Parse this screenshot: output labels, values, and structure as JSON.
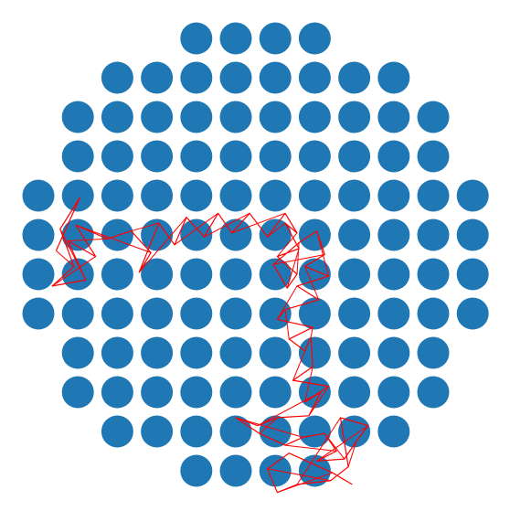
{
  "colors": {
    "background": "#ffffff",
    "dot": "#1f77b4",
    "path": "#ff0000"
  },
  "grid": {
    "columns": 12,
    "rows": 12,
    "row_counts": [
      4,
      8,
      10,
      10,
      12,
      12,
      12,
      12,
      10,
      10,
      8,
      4
    ]
  },
  "path_data": {
    "description_visible": false,
    "points": [
      [
        0.45,
        5.4
      ],
      [
        1.05,
        4.05
      ],
      [
        0.55,
        4.85
      ],
      [
        0.9,
        5.8
      ],
      [
        0.35,
        6.3
      ],
      [
        1.2,
        6.15
      ],
      [
        0.75,
        5.15
      ],
      [
        1.45,
        5.55
      ],
      [
        0.95,
        4.75
      ],
      [
        1.75,
        5.1
      ],
      [
        2.35,
        4.9
      ],
      [
        2.85,
        5.45
      ],
      [
        2.55,
        5.95
      ],
      [
        3.05,
        4.7
      ],
      [
        3.45,
        5.25
      ],
      [
        3.75,
        4.55
      ],
      [
        4.2,
        5.05
      ],
      [
        4.55,
        4.45
      ],
      [
        4.9,
        4.95
      ],
      [
        5.35,
        4.45
      ],
      [
        5.8,
        5.05
      ],
      [
        6.25,
        4.45
      ],
      [
        6.55,
        4.95
      ],
      [
        6.25,
        4.7
      ],
      [
        6.6,
        5.35
      ],
      [
        6.05,
        5.55
      ],
      [
        6.55,
        6.0
      ],
      [
        6.3,
        6.35
      ],
      [
        5.95,
        5.75
      ],
      [
        6.6,
        5.2
      ],
      [
        7.05,
        4.9
      ],
      [
        7.25,
        5.5
      ],
      [
        6.75,
        5.8
      ],
      [
        7.35,
        6.05
      ],
      [
        6.55,
        6.3
      ],
      [
        7.1,
        6.65
      ],
      [
        6.25,
        6.9
      ],
      [
        6.05,
        7.15
      ],
      [
        6.95,
        7.35
      ],
      [
        6.35,
        7.65
      ],
      [
        6.75,
        7.95
      ],
      [
        6.9,
        7.6
      ],
      [
        6.95,
        8.35
      ],
      [
        6.45,
        8.7
      ],
      [
        7.35,
        8.85
      ],
      [
        6.75,
        9.25
      ],
      [
        7.15,
        9.0
      ],
      [
        6.85,
        9.6
      ],
      [
        6.05,
        9.65
      ],
      [
        5.55,
        9.85
      ],
      [
        5.0,
        9.65
      ],
      [
        5.6,
        10.05
      ],
      [
        6.25,
        10.35
      ],
      [
        6.7,
        10.15
      ],
      [
        7.25,
        10.05
      ],
      [
        7.55,
        10.5
      ],
      [
        7.05,
        10.75
      ],
      [
        7.75,
        10.7
      ],
      [
        8.05,
        10.25
      ],
      [
        8.35,
        9.85
      ],
      [
        7.65,
        9.65
      ],
      [
        7.85,
        10.9
      ],
      [
        7.4,
        11.25
      ],
      [
        6.55,
        11.35
      ],
      [
        6.05,
        11.55
      ],
      [
        5.8,
        10.95
      ],
      [
        6.35,
        10.55
      ],
      [
        7.45,
        11.05
      ],
      [
        7.95,
        11.35
      ]
    ]
  }
}
